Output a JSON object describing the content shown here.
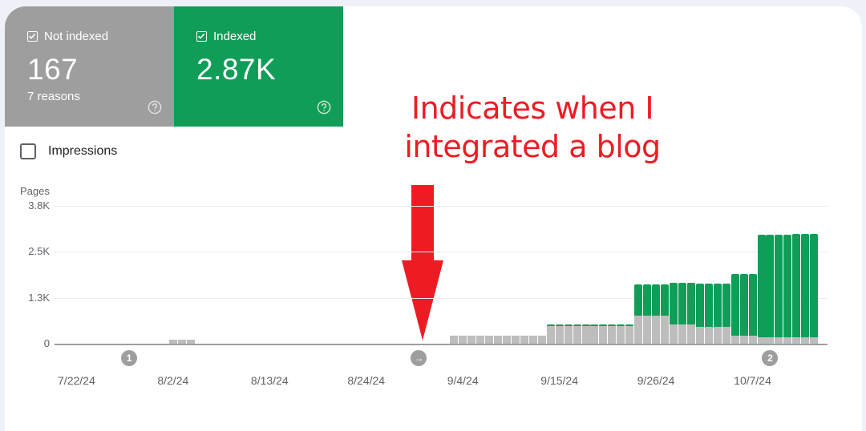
{
  "tiles": [
    {
      "label": "Not indexed",
      "value": "167",
      "sub": "7 reasons",
      "checked": true,
      "color": "#9e9e9e"
    },
    {
      "label": "Indexed",
      "value": "2.87K",
      "sub": "",
      "checked": true,
      "color": "#0f9d58"
    }
  ],
  "impressions": {
    "label": "Impressions",
    "checked": false
  },
  "annotation": {
    "line1": "Indicates when I",
    "line2": "integrated a blog",
    "color": "#ed1c24"
  },
  "markers": [
    {
      "label": "1",
      "date": "7/28/24"
    },
    {
      "label": "→",
      "date": "8/30/24"
    },
    {
      "label": "2",
      "date": "10/9/24"
    }
  ],
  "chart_data": {
    "type": "bar",
    "stacked": true,
    "ylabel": "Pages",
    "yticks": [
      "0",
      "1.3K",
      "2.5K",
      "3.8K"
    ],
    "ylim": [
      0,
      3800
    ],
    "xticks": [
      "7/22/24",
      "8/2/24",
      "8/13/24",
      "8/24/24",
      "9/4/24",
      "9/15/24",
      "9/26/24",
      "10/7/24"
    ],
    "x_range": [
      "7/20/24",
      "10/15/24"
    ],
    "legend": [
      "Not indexed",
      "Indexed"
    ],
    "series": [
      {
        "name": "Not indexed",
        "color": "#bdbdbd",
        "segments": [
          {
            "start": "8/2/24",
            "end": "8/4/24",
            "value": 110
          },
          {
            "start": "9/3/24",
            "end": "9/13/24",
            "value": 220
          },
          {
            "start": "9/14/24",
            "end": "9/23/24",
            "value": 490
          },
          {
            "start": "9/24/24",
            "end": "9/27/24",
            "value": 775
          },
          {
            "start": "9/28/24",
            "end": "9/30/24",
            "value": 530
          },
          {
            "start": "10/1/24",
            "end": "10/4/24",
            "value": 465
          },
          {
            "start": "10/5/24",
            "end": "10/7/24",
            "value": 220
          },
          {
            "start": "10/8/24",
            "end": "10/11/24",
            "value": 177
          },
          {
            "start": "10/12/24",
            "end": "10/14/24",
            "value": 167
          }
        ]
      },
      {
        "name": "Indexed",
        "color": "#0f9d58",
        "segments": [
          {
            "start": "8/2/24",
            "end": "8/4/24",
            "value": 0
          },
          {
            "start": "9/3/24",
            "end": "9/13/24",
            "value": 0
          },
          {
            "start": "9/14/24",
            "end": "9/23/24",
            "value": 40
          },
          {
            "start": "9/24/24",
            "end": "9/27/24",
            "value": 860
          },
          {
            "start": "9/28/24",
            "end": "9/30/24",
            "value": 1150
          },
          {
            "start": "10/1/24",
            "end": "10/4/24",
            "value": 1195
          },
          {
            "start": "10/5/24",
            "end": "10/7/24",
            "value": 1700
          },
          {
            "start": "10/8/24",
            "end": "10/11/24",
            "value": 2830
          },
          {
            "start": "10/12/24",
            "end": "10/14/24",
            "value": 2870
          }
        ]
      }
    ]
  }
}
